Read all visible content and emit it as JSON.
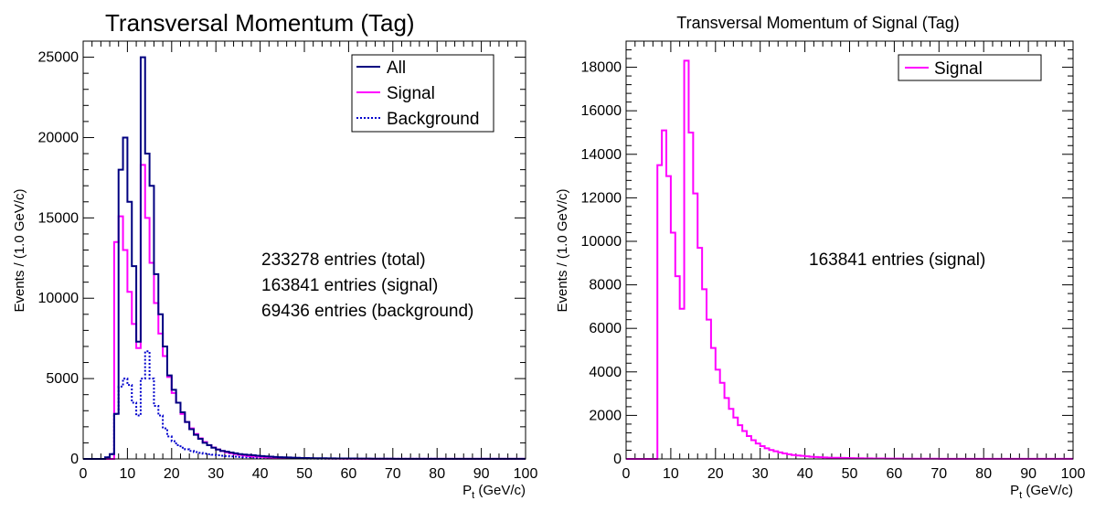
{
  "colors": {
    "all": "#000080",
    "signal": "#ff00ff",
    "background": "#0000cc",
    "axis": "#000000"
  },
  "chart_data": [
    {
      "type": "histogram",
      "title": "Transversal Momentum (Tag)",
      "xlabel_main": "P",
      "xlabel_sub": "t",
      "xlabel_unit": " (GeV/c)",
      "ylabel": "Events / (1.0 GeV/c)",
      "xlim": [
        0,
        100
      ],
      "ylim": [
        0,
        26000
      ],
      "xticks": [
        "0",
        "10",
        "20",
        "30",
        "40",
        "50",
        "60",
        "70",
        "80",
        "90",
        "100"
      ],
      "yticks": [
        "0",
        "5000",
        "10000",
        "15000",
        "20000",
        "25000"
      ],
      "ytick_values": [
        0,
        5000,
        10000,
        15000,
        20000,
        25000
      ],
      "bin_edges_start": 0,
      "bin_width": 1,
      "legend": {
        "position": "top-right",
        "entries": [
          "All",
          "Signal",
          "Background"
        ]
      },
      "annotations": [
        "233278 entries (total)",
        "163841 entries (signal)",
        "69436 entries (background)"
      ],
      "series": [
        {
          "name": "All",
          "style": "solid",
          "values": [
            0,
            0,
            0,
            0,
            0,
            100,
            300,
            2800,
            18000,
            20000,
            16000,
            12000,
            7300,
            25000,
            19000,
            17000,
            11500,
            9000,
            7000,
            5200,
            4300,
            3500,
            2900,
            2300,
            1850,
            1500,
            1250,
            1000,
            850,
            700,
            580,
            500,
            450,
            400,
            350,
            300,
            270,
            250,
            230,
            200,
            180,
            160,
            140,
            120,
            110,
            100,
            90,
            80,
            70,
            60,
            55,
            50,
            45,
            40,
            40,
            35,
            35,
            30,
            30,
            25,
            25,
            25,
            20,
            20,
            20,
            15,
            15,
            15,
            15,
            15,
            10,
            10,
            10,
            10,
            10,
            10,
            10,
            10,
            10,
            10,
            5,
            5,
            5,
            5,
            5,
            5,
            5,
            5,
            5,
            5,
            5,
            5,
            5,
            5,
            5,
            5,
            5,
            5,
            5,
            5
          ]
        },
        {
          "name": "Signal",
          "style": "solid",
          "values": [
            0,
            0,
            0,
            0,
            0,
            0,
            0,
            13500,
            15100,
            13000,
            10400,
            8400,
            6900,
            18300,
            15000,
            12200,
            9700,
            7800,
            6400,
            5100,
            4100,
            3500,
            2800,
            2300,
            1900,
            1550,
            1280,
            1050,
            860,
            710,
            590,
            490,
            410,
            350,
            300,
            250,
            210,
            180,
            160,
            140,
            120,
            100,
            90,
            80,
            70,
            60,
            55,
            50,
            45,
            40,
            35,
            30,
            30,
            25,
            25,
            20,
            20,
            20,
            15,
            15,
            15,
            15,
            10,
            10,
            10,
            10,
            10,
            10,
            10,
            10,
            5,
            5,
            5,
            5,
            5,
            5,
            5,
            5,
            5,
            5,
            5,
            5,
            5,
            5,
            5,
            5,
            5,
            5,
            5,
            5,
            5,
            5,
            5,
            5,
            5,
            5,
            5,
            5,
            5,
            5
          ]
        },
        {
          "name": "Background",
          "style": "dotted",
          "values": [
            0,
            0,
            0,
            0,
            0,
            100,
            300,
            2800,
            4500,
            5000,
            4600,
            3500,
            2700,
            5000,
            6700,
            5000,
            3300,
            2700,
            1900,
            1400,
            1100,
            850,
            700,
            600,
            500,
            430,
            380,
            330,
            290,
            260,
            230,
            200,
            180,
            160,
            140,
            120,
            110,
            100,
            90,
            80,
            70,
            60,
            55,
            50,
            45,
            40,
            35,
            30,
            28,
            25,
            22,
            20,
            18,
            16,
            15,
            14,
            13,
            12,
            11,
            10,
            10,
            9,
            9,
            8,
            8,
            7,
            7,
            6,
            6,
            5,
            5,
            5,
            5,
            5,
            5,
            4,
            4,
            4,
            4,
            4,
            3,
            3,
            3,
            3,
            3,
            3,
            3,
            3,
            3,
            3,
            2,
            2,
            2,
            2,
            2,
            2,
            2,
            2,
            2,
            2
          ]
        }
      ]
    },
    {
      "type": "histogram",
      "title": "Transversal Momentum of Signal (Tag)",
      "xlabel_main": "P",
      "xlabel_sub": "t",
      "xlabel_unit": " (GeV/c)",
      "ylabel": "Events / (1.0 GeV/c)",
      "xlim": [
        0,
        100
      ],
      "ylim": [
        0,
        19200
      ],
      "xticks": [
        "0",
        "10",
        "20",
        "30",
        "40",
        "50",
        "60",
        "70",
        "80",
        "90",
        "100"
      ],
      "yticks": [
        "0",
        "2000",
        "4000",
        "6000",
        "8000",
        "10000",
        "12000",
        "14000",
        "16000",
        "18000"
      ],
      "ytick_values": [
        0,
        2000,
        4000,
        6000,
        8000,
        10000,
        12000,
        14000,
        16000,
        18000
      ],
      "bin_edges_start": 0,
      "bin_width": 1,
      "legend": {
        "position": "top-right",
        "entries": [
          "Signal"
        ]
      },
      "annotations": [
        "163841 entries (signal)"
      ],
      "series": [
        {
          "name": "Signal",
          "style": "solid",
          "values": [
            0,
            0,
            0,
            0,
            0,
            0,
            0,
            13500,
            15100,
            13000,
            10400,
            8400,
            6900,
            18300,
            15000,
            12200,
            9700,
            7800,
            6400,
            5100,
            4100,
            3500,
            2800,
            2300,
            1900,
            1550,
            1280,
            1050,
            860,
            710,
            590,
            490,
            410,
            350,
            300,
            250,
            210,
            180,
            160,
            140,
            120,
            100,
            90,
            80,
            70,
            60,
            55,
            50,
            45,
            40,
            35,
            30,
            30,
            25,
            25,
            20,
            20,
            20,
            15,
            15,
            15,
            15,
            10,
            10,
            10,
            10,
            10,
            10,
            10,
            10,
            5,
            5,
            5,
            5,
            5,
            5,
            5,
            5,
            5,
            5,
            5,
            5,
            5,
            5,
            5,
            5,
            5,
            5,
            5,
            5,
            5,
            5,
            5,
            5,
            5,
            5,
            5,
            5,
            5,
            5
          ]
        }
      ]
    }
  ]
}
